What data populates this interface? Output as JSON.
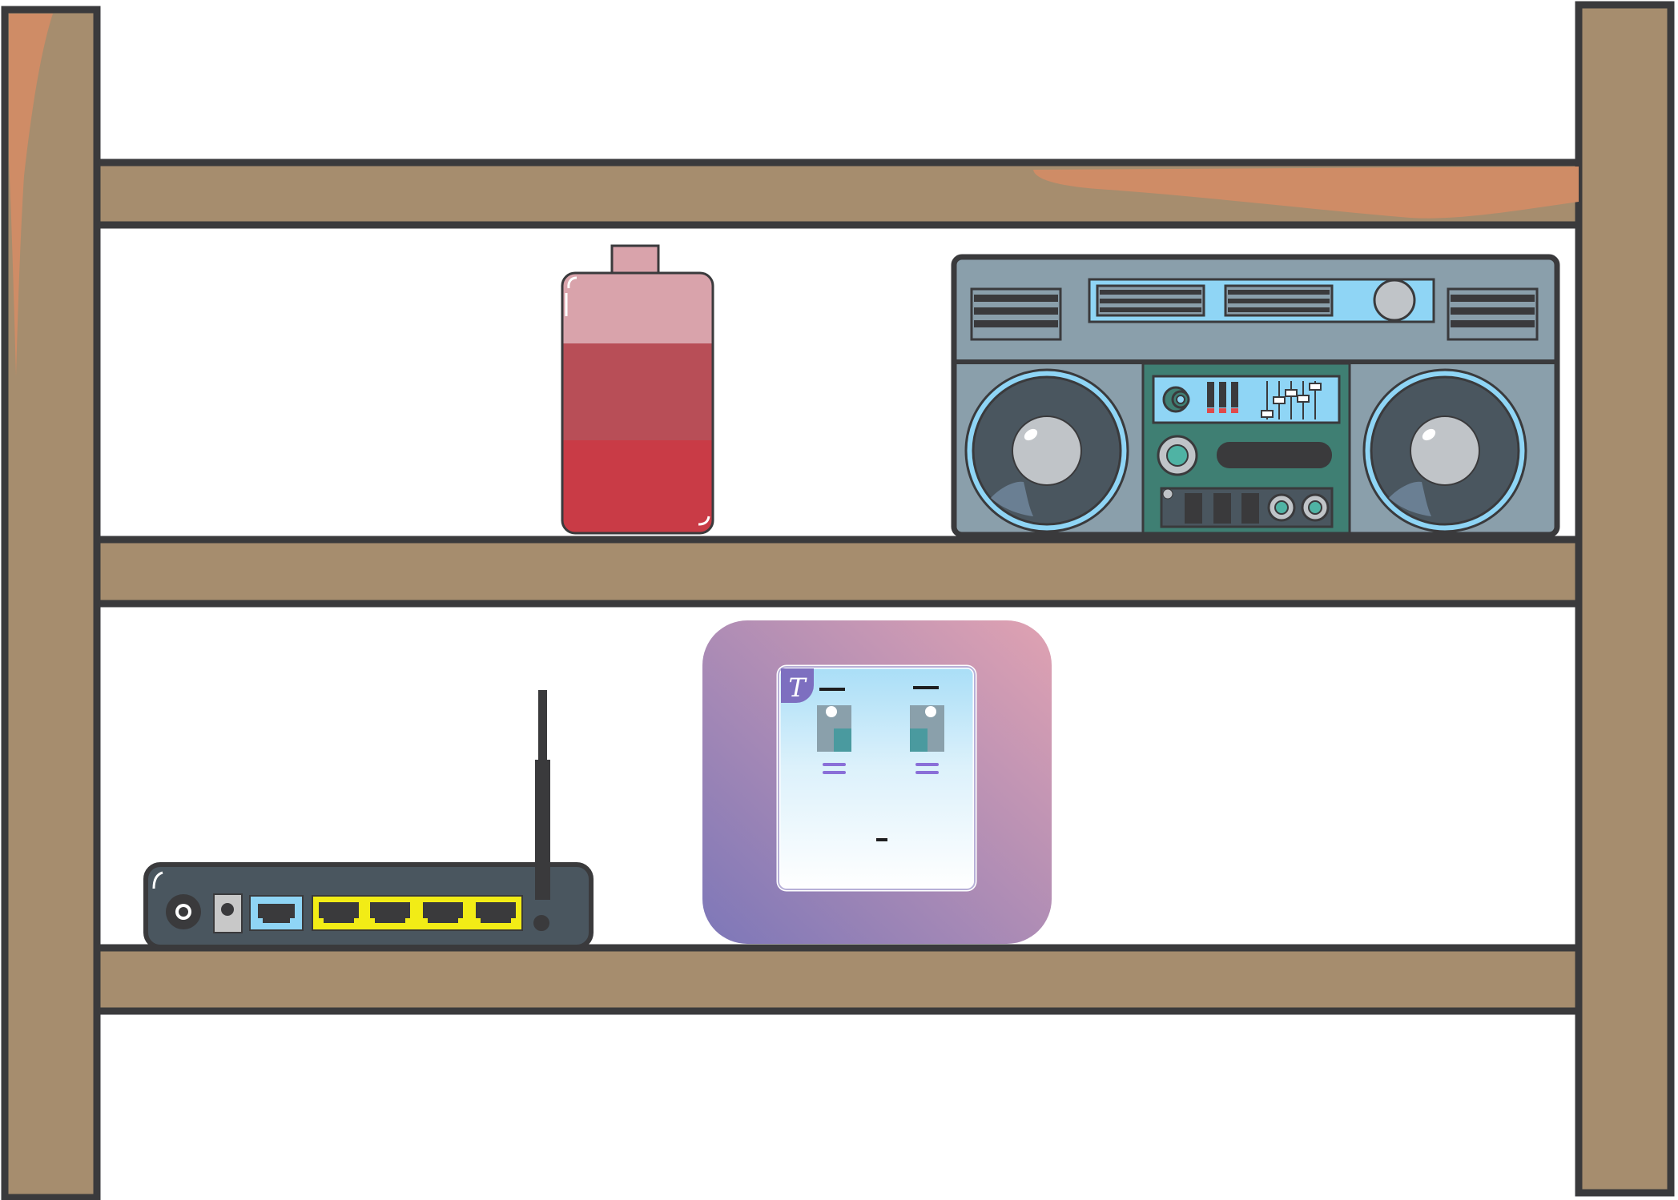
{
  "scene": {
    "description_shown": false,
    "colors": {
      "wood": "#a68d6e",
      "wood_highlight": "#cf8c66",
      "outline": "#3a3a3c",
      "background": "#ffffff",
      "bottle_light": "#d9a3ab",
      "bottle_mid": "#b84e57",
      "bottle_dark": "#c93b46",
      "boombox_body": "#8a9fab",
      "boombox_panel": "#3f7f73",
      "boombox_accent": "#8fd5f5",
      "router_body": "#4a565f",
      "router_ports_lan": "#f2ec16",
      "router_port_wan": "#8fd5f5",
      "switch_gradient_start": "#7d77b8",
      "switch_gradient_end": "#e0a2b2",
      "switch_plate": "#a9def7"
    },
    "switch_badge": {
      "letter": "T"
    },
    "objects": [
      {
        "name": "bottle",
        "shelf": "upper"
      },
      {
        "name": "boombox",
        "shelf": "upper"
      },
      {
        "name": "wifi-router",
        "shelf": "lower"
      },
      {
        "name": "light-switch",
        "shelf": "lower"
      }
    ]
  }
}
